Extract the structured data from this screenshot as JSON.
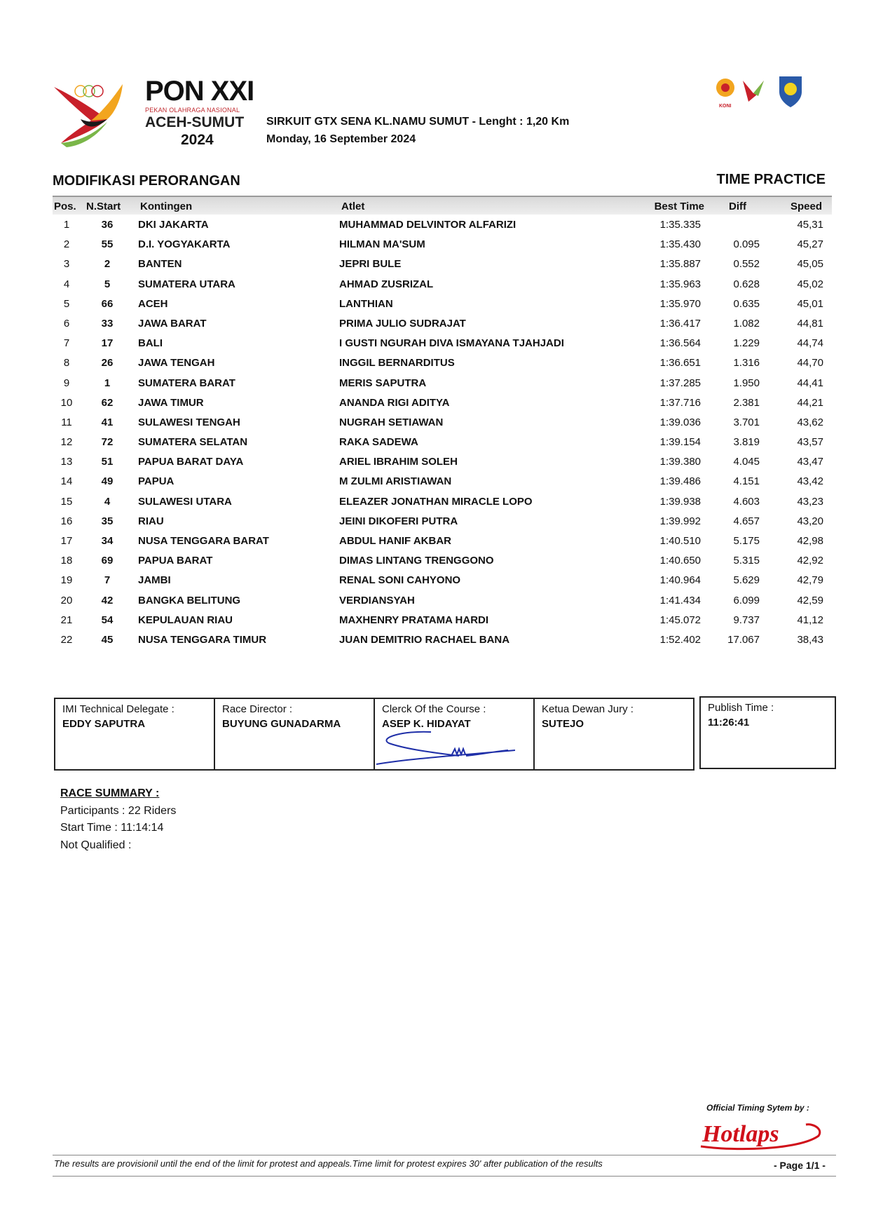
{
  "header": {
    "logo": {
      "title": "PON XXI",
      "subtitle": "PEKAN OLAHRAGA NASIONAL",
      "region": "ACEH-SUMUT",
      "year": "2024"
    },
    "venue": "SIRKUIT GTX SENA KL.NAMU SUMUT - Lenght : 1,20 Km",
    "date": "Monday, 16 September 2024",
    "partner_logos": [
      "KONI",
      "PON XXI",
      "IMI"
    ]
  },
  "category": "MODIFIKASI PERORANGAN",
  "session": "TIME PRACTICE",
  "table": {
    "columns": [
      "Pos.",
      "N.Start",
      "Kontingen",
      "Atlet",
      "Best Time",
      "Diff",
      "Speed"
    ],
    "rows": [
      [
        "1",
        "36",
        "DKI JAKARTA",
        "MUHAMMAD DELVINTOR ALFARIZI",
        "1:35.335",
        "",
        "45,31"
      ],
      [
        "2",
        "55",
        "D.I. YOGYAKARTA",
        "HILMAN MA'SUM",
        "1:35.430",
        "0.095",
        "45,27"
      ],
      [
        "3",
        "2",
        "BANTEN",
        "JEPRI BULE",
        "1:35.887",
        "0.552",
        "45,05"
      ],
      [
        "4",
        "5",
        "SUMATERA UTARA",
        "AHMAD ZUSRIZAL",
        "1:35.963",
        "0.628",
        "45,02"
      ],
      [
        "5",
        "66",
        "ACEH",
        "LANTHIAN",
        "1:35.970",
        "0.635",
        "45,01"
      ],
      [
        "6",
        "33",
        "JAWA BARAT",
        "PRIMA JULIO SUDRAJAT",
        "1:36.417",
        "1.082",
        "44,81"
      ],
      [
        "7",
        "17",
        "BALI",
        "I GUSTI NGURAH DIVA ISMAYANA TJAHJADI",
        "1:36.564",
        "1.229",
        "44,74"
      ],
      [
        "8",
        "26",
        "JAWA TENGAH",
        "INGGIL BERNARDITUS",
        "1:36.651",
        "1.316",
        "44,70"
      ],
      [
        "9",
        "1",
        "SUMATERA BARAT",
        "MERIS SAPUTRA",
        "1:37.285",
        "1.950",
        "44,41"
      ],
      [
        "10",
        "62",
        "JAWA TIMUR",
        "ANANDA RIGI ADITYA",
        "1:37.716",
        "2.381",
        "44,21"
      ],
      [
        "11",
        "41",
        "SULAWESI TENGAH",
        "NUGRAH SETIAWAN",
        "1:39.036",
        "3.701",
        "43,62"
      ],
      [
        "12",
        "72",
        "SUMATERA SELATAN",
        "RAKA SADEWA",
        "1:39.154",
        "3.819",
        "43,57"
      ],
      [
        "13",
        "51",
        "PAPUA BARAT DAYA",
        "ARIEL IBRAHIM SOLEH",
        "1:39.380",
        "4.045",
        "43,47"
      ],
      [
        "14",
        "49",
        "PAPUA",
        "M ZULMI ARISTIAWAN",
        "1:39.486",
        "4.151",
        "43,42"
      ],
      [
        "15",
        "4",
        "SULAWESI UTARA",
        "ELEAZER JONATHAN MIRACLE LOPO",
        "1:39.938",
        "4.603",
        "43,23"
      ],
      [
        "16",
        "35",
        "RIAU",
        "JEINI DIKOFERI PUTRA",
        "1:39.992",
        "4.657",
        "43,20"
      ],
      [
        "17",
        "34",
        "NUSA TENGGARA BARAT",
        "ABDUL HANIF AKBAR",
        "1:40.510",
        "5.175",
        "42,98"
      ],
      [
        "18",
        "69",
        "PAPUA BARAT",
        "DIMAS LINTANG TRENGGONO",
        "1:40.650",
        "5.315",
        "42,92"
      ],
      [
        "19",
        "7",
        "JAMBI",
        "RENAL SONI CAHYONO",
        "1:40.964",
        "5.629",
        "42,79"
      ],
      [
        "20",
        "42",
        "BANGKA BELITUNG",
        "VERDIANSYAH",
        "1:41.434",
        "6.099",
        "42,59"
      ],
      [
        "21",
        "54",
        "KEPULAUAN RIAU",
        "MAXHENRY PRATAMA HARDI",
        "1:45.072",
        "9.737",
        "41,12"
      ],
      [
        "22",
        "45",
        "NUSA TENGGARA TIMUR",
        "JUAN DEMITRIO RACHAEL BANA",
        "1:52.402",
        "17.067",
        "38,43"
      ]
    ]
  },
  "officials": [
    {
      "label": "IMI Technical Delegate :",
      "name": "EDDY SAPUTRA"
    },
    {
      "label": "Race Director :",
      "name": "BUYUNG GUNADARMA"
    },
    {
      "label": "Clerck Of the Course :",
      "name": "ASEP K. HIDAYAT"
    },
    {
      "label": "Ketua Dewan Jury :",
      "name": "SUTEJO"
    },
    {
      "label": "Publish Time :",
      "name": "11:26:41"
    }
  ],
  "summary": {
    "title": "RACE SUMMARY :",
    "participants": "Participants : 22 Riders",
    "start_time": "Start Time : 11:14:14",
    "not_qualified": "Not Qualified :"
  },
  "footer": {
    "timing_label": "Official Timing Sytem by :",
    "timing_brand": "Hotlaps",
    "disclaimer": "The results are provisionil until the end of the limit for protest and appeals.Time limit for protest expires 30' after publication of the results",
    "page": "- Page 1/1 -"
  },
  "colors": {
    "signature": "#1f2fa8",
    "brand_red": "#d0101a",
    "header_gray": "#d9d9d9"
  }
}
